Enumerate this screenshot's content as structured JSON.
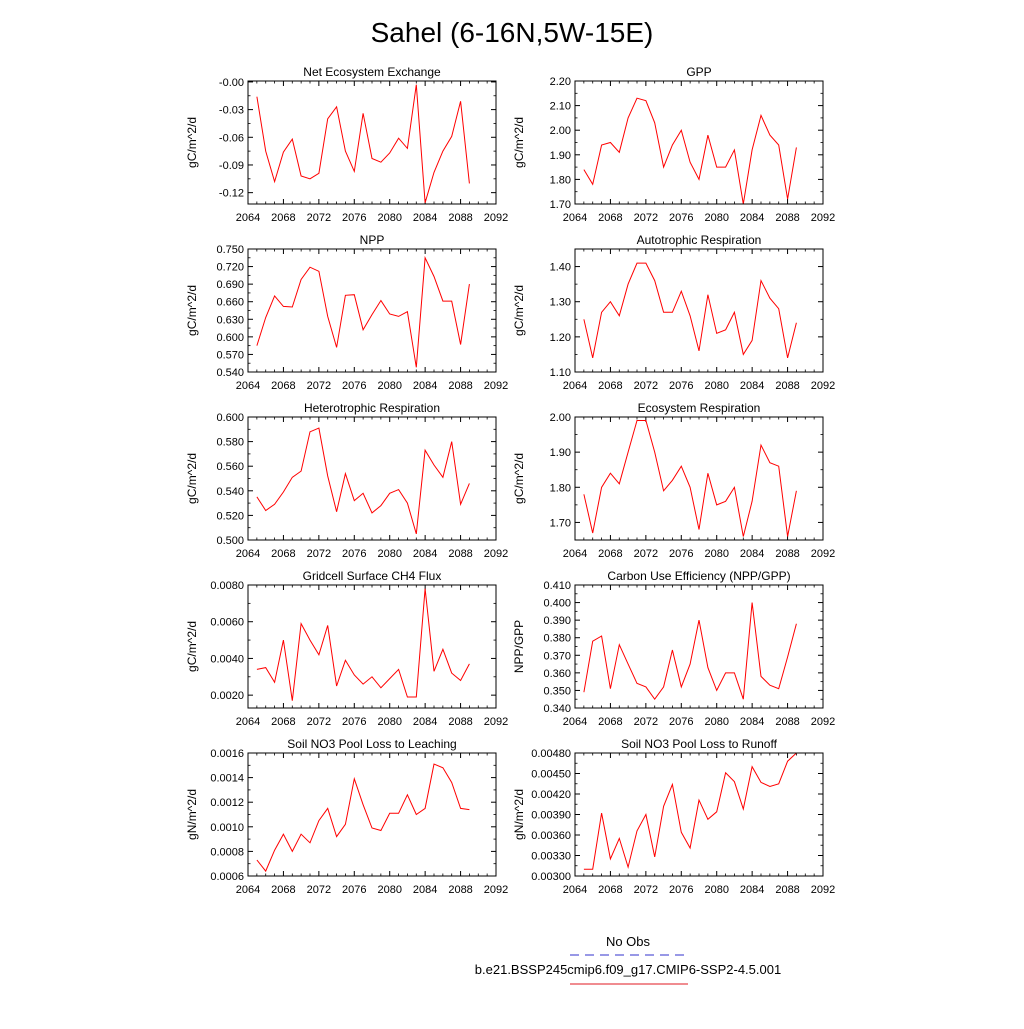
{
  "title": "Sahel (6-16N,5W-15E)",
  "legend": {
    "obs_label": "No Obs",
    "obs_color": "#5b5bd6",
    "model_label": "b.e21.BSSP245cmip6.f09_g17.CMIP6-SSP2-4.5.001",
    "model_color": "#e8474d"
  },
  "chart_data": [
    {
      "type": "line",
      "title": "Net Ecosystem Exchange",
      "ylabel": "gC/m^2/d",
      "xlabel": "",
      "xlim": [
        2064,
        2092
      ],
      "xticks": [
        "2064",
        "2068",
        "2072",
        "2076",
        "2080",
        "2084",
        "2088",
        "2092"
      ],
      "ylim": [
        -0.1323,
        0.001
      ],
      "yticks": [
        "-0.00",
        "-0.03",
        "-0.06",
        "-0.09",
        "-0.12"
      ],
      "ytick_values": [
        0,
        -0.03,
        -0.06,
        -0.09,
        -0.12
      ],
      "x": [
        2065,
        2066,
        2067,
        2068,
        2069,
        2070,
        2071,
        2072,
        2073,
        2074,
        2075,
        2076,
        2077,
        2078,
        2079,
        2080,
        2081,
        2082,
        2083,
        2084,
        2085,
        2086,
        2087,
        2088,
        2089
      ],
      "series": [
        {
          "values": [
            -0.016,
            -0.075,
            -0.108,
            -0.076,
            -0.062,
            -0.102,
            -0.105,
            -0.099,
            -0.04,
            -0.027,
            -0.075,
            -0.097,
            -0.034,
            -0.083,
            -0.087,
            -0.077,
            -0.061,
            -0.072,
            -0.003,
            -0.131,
            -0.098,
            -0.075,
            -0.059,
            -0.021,
            -0.11
          ],
          "color": "#ff0000"
        }
      ]
    },
    {
      "type": "line",
      "title": "GPP",
      "ylabel": "gC/m^2/d",
      "xlabel": "",
      "xlim": [
        2064,
        2092
      ],
      "xticks": [
        "2064",
        "2068",
        "2072",
        "2076",
        "2080",
        "2084",
        "2088",
        "2092"
      ],
      "ylim": [
        1.7,
        2.2
      ],
      "yticks": [
        "2.20",
        "2.10",
        "2.00",
        "1.90",
        "1.80",
        "1.70"
      ],
      "ytick_values": [
        2.2,
        2.1,
        2.0,
        1.9,
        1.8,
        1.7
      ],
      "x": [
        2065,
        2066,
        2067,
        2068,
        2069,
        2070,
        2071,
        2072,
        2073,
        2074,
        2075,
        2076,
        2077,
        2078,
        2079,
        2080,
        2081,
        2082,
        2083,
        2084,
        2085,
        2086,
        2087,
        2088,
        2089
      ],
      "series": [
        {
          "values": [
            1.84,
            1.78,
            1.94,
            1.95,
            1.91,
            2.05,
            2.13,
            2.12,
            2.03,
            1.85,
            1.94,
            2.0,
            1.87,
            1.8,
            1.98,
            1.85,
            1.85,
            1.92,
            1.7,
            1.92,
            2.06,
            1.98,
            1.94,
            1.72,
            1.93
          ],
          "color": "#ff0000"
        }
      ]
    },
    {
      "type": "line",
      "title": "NPP",
      "ylabel": "gC/m^2/d",
      "xlabel": "",
      "xlim": [
        2064,
        2092
      ],
      "xticks": [
        "2064",
        "2068",
        "2072",
        "2076",
        "2080",
        "2084",
        "2088",
        "2092"
      ],
      "ylim": [
        0.54,
        0.75
      ],
      "yticks": [
        "0.750",
        "0.720",
        "0.690",
        "0.660",
        "0.630",
        "0.600",
        "0.570",
        "0.540"
      ],
      "ytick_values": [
        0.75,
        0.72,
        0.69,
        0.66,
        0.63,
        0.6,
        0.57,
        0.54
      ],
      "x": [
        2065,
        2066,
        2067,
        2068,
        2069,
        2070,
        2071,
        2072,
        2073,
        2074,
        2075,
        2076,
        2077,
        2078,
        2079,
        2080,
        2081,
        2082,
        2083,
        2084,
        2085,
        2086,
        2087,
        2088,
        2089
      ],
      "series": [
        {
          "values": [
            0.585,
            0.633,
            0.67,
            0.652,
            0.651,
            0.698,
            0.719,
            0.712,
            0.635,
            0.582,
            0.671,
            0.672,
            0.612,
            0.638,
            0.662,
            0.639,
            0.635,
            0.643,
            0.548,
            0.735,
            0.703,
            0.661,
            0.661,
            0.587,
            0.69
          ],
          "color": "#ff0000"
        }
      ]
    },
    {
      "type": "line",
      "title": "Autotrophic Respiration",
      "ylabel": "gC/m^2/d",
      "xlabel": "",
      "xlim": [
        2064,
        2092
      ],
      "xticks": [
        "2064",
        "2068",
        "2072",
        "2076",
        "2080",
        "2084",
        "2088",
        "2092"
      ],
      "ylim": [
        1.1,
        1.45
      ],
      "yticks": [
        "1.40",
        "1.30",
        "1.20",
        "1.10"
      ],
      "ytick_values": [
        1.4,
        1.3,
        1.2,
        1.1
      ],
      "x": [
        2065,
        2066,
        2067,
        2068,
        2069,
        2070,
        2071,
        2072,
        2073,
        2074,
        2075,
        2076,
        2077,
        2078,
        2079,
        2080,
        2081,
        2082,
        2083,
        2084,
        2085,
        2086,
        2087,
        2088,
        2089
      ],
      "series": [
        {
          "values": [
            1.25,
            1.14,
            1.27,
            1.3,
            1.26,
            1.35,
            1.41,
            1.41,
            1.36,
            1.27,
            1.27,
            1.33,
            1.26,
            1.16,
            1.32,
            1.21,
            1.22,
            1.27,
            1.15,
            1.19,
            1.36,
            1.31,
            1.28,
            1.14,
            1.24
          ],
          "color": "#ff0000"
        }
      ]
    },
    {
      "type": "line",
      "title": "Heterotrophic Respiration",
      "ylabel": "gC/m^2/d",
      "xlabel": "",
      "xlim": [
        2064,
        2092
      ],
      "xticks": [
        "2064",
        "2068",
        "2072",
        "2076",
        "2080",
        "2084",
        "2088",
        "2092"
      ],
      "ylim": [
        0.5,
        0.6
      ],
      "yticks": [
        "0.600",
        "0.580",
        "0.560",
        "0.540",
        "0.520",
        "0.500"
      ],
      "ytick_values": [
        0.6,
        0.58,
        0.56,
        0.54,
        0.52,
        0.5
      ],
      "x": [
        2065,
        2066,
        2067,
        2068,
        2069,
        2070,
        2071,
        2072,
        2073,
        2074,
        2075,
        2076,
        2077,
        2078,
        2079,
        2080,
        2081,
        2082,
        2083,
        2084,
        2085,
        2086,
        2087,
        2088,
        2089
      ],
      "series": [
        {
          "values": [
            0.535,
            0.524,
            0.529,
            0.539,
            0.551,
            0.556,
            0.588,
            0.591,
            0.552,
            0.523,
            0.554,
            0.532,
            0.538,
            0.522,
            0.528,
            0.538,
            0.541,
            0.53,
            0.505,
            0.573,
            0.561,
            0.551,
            0.58,
            0.529,
            0.546
          ],
          "color": "#ff0000"
        }
      ]
    },
    {
      "type": "line",
      "title": "Ecosystem Respiration",
      "ylabel": "gC/m^2/d",
      "xlabel": "",
      "xlim": [
        2064,
        2092
      ],
      "xticks": [
        "2064",
        "2068",
        "2072",
        "2076",
        "2080",
        "2084",
        "2088",
        "2092"
      ],
      "ylim": [
        1.65,
        2.0
      ],
      "yticks": [
        "2.00",
        "1.90",
        "1.80",
        "1.70"
      ],
      "ytick_values": [
        2.0,
        1.9,
        1.8,
        1.7
      ],
      "x": [
        2065,
        2066,
        2067,
        2068,
        2069,
        2070,
        2071,
        2072,
        2073,
        2074,
        2075,
        2076,
        2077,
        2078,
        2079,
        2080,
        2081,
        2082,
        2083,
        2084,
        2085,
        2086,
        2087,
        2088,
        2089
      ],
      "series": [
        {
          "values": [
            1.78,
            1.67,
            1.8,
            1.84,
            1.81,
            1.9,
            1.99,
            1.99,
            1.9,
            1.79,
            1.82,
            1.86,
            1.8,
            1.68,
            1.84,
            1.75,
            1.76,
            1.8,
            1.66,
            1.76,
            1.92,
            1.87,
            1.86,
            1.66,
            1.79
          ],
          "color": "#ff0000"
        }
      ]
    },
    {
      "type": "line",
      "title": "Gridcell Surface CH4 Flux",
      "ylabel": "gC/m^2/d",
      "xlabel": "",
      "xlim": [
        2064,
        2092
      ],
      "xticks": [
        "2064",
        "2068",
        "2072",
        "2076",
        "2080",
        "2084",
        "2088",
        "2092"
      ],
      "ylim": [
        0.0013,
        0.008
      ],
      "yticks": [
        "0.0080",
        "0.0060",
        "0.0040",
        "0.0020"
      ],
      "ytick_values": [
        0.008,
        0.006,
        0.004,
        0.002
      ],
      "x": [
        2065,
        2066,
        2067,
        2068,
        2069,
        2070,
        2071,
        2072,
        2073,
        2074,
        2075,
        2076,
        2077,
        2078,
        2079,
        2080,
        2081,
        2082,
        2083,
        2084,
        2085,
        2086,
        2087,
        2088,
        2089
      ],
      "series": [
        {
          "values": [
            0.0034,
            0.0035,
            0.0027,
            0.005,
            0.0017,
            0.0059,
            0.005,
            0.0042,
            0.0058,
            0.0025,
            0.0039,
            0.0031,
            0.0026,
            0.003,
            0.0024,
            0.0029,
            0.0034,
            0.0019,
            0.0019,
            0.0078,
            0.0033,
            0.0045,
            0.0032,
            0.0028,
            0.0037
          ],
          "color": "#ff0000"
        }
      ]
    },
    {
      "type": "line",
      "title": "Carbon Use Efficiency (NPP/GPP)",
      "ylabel": "NPP/GPP",
      "xlabel": "",
      "xlim": [
        2064,
        2092
      ],
      "xticks": [
        "2064",
        "2068",
        "2072",
        "2076",
        "2080",
        "2084",
        "2088",
        "2092"
      ],
      "ylim": [
        0.34,
        0.41
      ],
      "yticks": [
        "0.410",
        "0.400",
        "0.390",
        "0.380",
        "0.370",
        "0.360",
        "0.350",
        "0.340"
      ],
      "ytick_values": [
        0.41,
        0.4,
        0.39,
        0.38,
        0.37,
        0.36,
        0.35,
        0.34
      ],
      "x": [
        2065,
        2066,
        2067,
        2068,
        2069,
        2070,
        2071,
        2072,
        2073,
        2074,
        2075,
        2076,
        2077,
        2078,
        2079,
        2080,
        2081,
        2082,
        2083,
        2084,
        2085,
        2086,
        2087,
        2088,
        2089
      ],
      "series": [
        {
          "values": [
            0.349,
            0.378,
            0.381,
            0.351,
            0.376,
            0.365,
            0.354,
            0.352,
            0.345,
            0.352,
            0.373,
            0.352,
            0.365,
            0.39,
            0.363,
            0.35,
            0.36,
            0.36,
            0.345,
            0.4,
            0.358,
            0.353,
            0.351,
            0.369,
            0.388
          ],
          "color": "#ff0000"
        }
      ]
    },
    {
      "type": "line",
      "title": "Soil NO3 Pool Loss to Leaching",
      "ylabel": "gN/m^2/d",
      "xlabel": "",
      "xlim": [
        2064,
        2092
      ],
      "xticks": [
        "2064",
        "2068",
        "2072",
        "2076",
        "2080",
        "2084",
        "2088",
        "2092"
      ],
      "ylim": [
        0.0006,
        0.0016
      ],
      "yticks": [
        "0.0016",
        "0.0014",
        "0.0012",
        "0.0010",
        "0.0008",
        "0.0006"
      ],
      "ytick_values": [
        0.0016,
        0.0014,
        0.0012,
        0.001,
        0.0008,
        0.0006
      ],
      "x": [
        2065,
        2066,
        2067,
        2068,
        2069,
        2070,
        2071,
        2072,
        2073,
        2074,
        2075,
        2076,
        2077,
        2078,
        2079,
        2080,
        2081,
        2082,
        2083,
        2084,
        2085,
        2086,
        2087,
        2088,
        2089
      ],
      "series": [
        {
          "values": [
            0.00073,
            0.00064,
            0.00081,
            0.00094,
            0.0008,
            0.00094,
            0.00087,
            0.00105,
            0.00115,
            0.00092,
            0.00102,
            0.00139,
            0.00118,
            0.00099,
            0.00097,
            0.00111,
            0.00111,
            0.00126,
            0.0011,
            0.00115,
            0.00151,
            0.00148,
            0.00136,
            0.00115,
            0.00114
          ],
          "color": "#ff0000"
        }
      ]
    },
    {
      "type": "line",
      "title": "Soil NO3 Pool Loss to Runoff",
      "ylabel": "gN/m^2/d",
      "xlabel": "",
      "xlim": [
        2064,
        2092
      ],
      "xticks": [
        "2064",
        "2068",
        "2072",
        "2076",
        "2080",
        "2084",
        "2088",
        "2092"
      ],
      "ylim": [
        0.003,
        0.0048
      ],
      "yticks": [
        "0.00480",
        "0.00450",
        "0.00420",
        "0.00390",
        "0.00360",
        "0.00330",
        "0.00300"
      ],
      "ytick_values": [
        0.0048,
        0.0045,
        0.0042,
        0.0039,
        0.0036,
        0.0033,
        0.003
      ],
      "x": [
        2065,
        2066,
        2067,
        2068,
        2069,
        2070,
        2071,
        2072,
        2073,
        2074,
        2075,
        2076,
        2077,
        2078,
        2079,
        2080,
        2081,
        2082,
        2083,
        2084,
        2085,
        2086,
        2087,
        2088,
        2089
      ],
      "series": [
        {
          "values": [
            0.0031,
            0.0031,
            0.00392,
            0.00325,
            0.00355,
            0.00313,
            0.00366,
            0.0039,
            0.00328,
            0.00402,
            0.00434,
            0.00364,
            0.00341,
            0.00411,
            0.00383,
            0.00394,
            0.00451,
            0.00438,
            0.00398,
            0.0046,
            0.00437,
            0.00431,
            0.00435,
            0.00468,
            0.0048
          ],
          "color": "#ff0000"
        }
      ]
    }
  ]
}
